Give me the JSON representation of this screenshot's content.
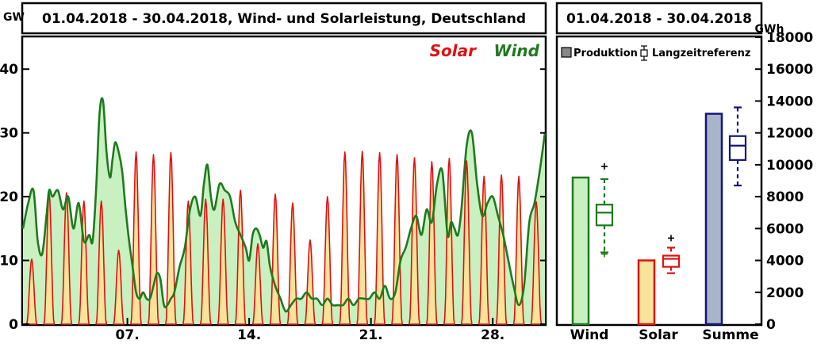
{
  "chart_data": [
    {
      "type": "area",
      "title": "01.04.2018 - 30.04.2018, Wind- und Solarleistung, Deutschland",
      "ylabel": "GW",
      "ylim": [
        0,
        45
      ],
      "yticks": [
        0,
        10,
        20,
        30,
        40
      ],
      "xlim": [
        1,
        31
      ],
      "xticks": [
        {
          "x": 7,
          "label": "07."
        },
        {
          "x": 14,
          "label": "14."
        },
        {
          "x": 21,
          "label": "21."
        },
        {
          "x": 28,
          "label": "28."
        }
      ],
      "series": [
        {
          "name": "Wind",
          "color": "#1e7a1e",
          "fill": "#c8f0c0",
          "x": [
            1.0,
            1.3,
            1.6,
            1.85,
            2.1,
            2.35,
            2.5,
            2.7,
            3.0,
            3.3,
            3.6,
            3.9,
            4.2,
            4.5,
            4.8,
            5.0,
            5.2,
            5.4,
            5.6,
            5.8,
            6.0,
            6.15,
            6.3,
            6.5,
            6.7,
            6.9,
            7.1,
            7.3,
            7.5,
            7.7,
            7.9,
            8.1,
            8.3,
            8.5,
            8.7,
            8.9,
            9.1,
            9.3,
            9.5,
            9.7,
            10.0,
            10.3,
            10.6,
            10.9,
            11.2,
            11.4,
            11.6,
            11.8,
            12.0,
            12.3,
            12.6,
            12.9,
            13.2,
            13.5,
            13.8,
            14.0,
            14.2,
            14.4,
            14.6,
            14.8,
            15.0,
            15.2,
            15.5,
            15.8,
            16.1,
            16.4,
            16.7,
            17.0,
            17.3,
            17.6,
            17.9,
            18.2,
            18.5,
            18.8,
            19.1,
            19.4,
            19.7,
            20.0,
            20.3,
            20.6,
            20.9,
            21.2,
            21.5,
            21.8,
            22.1,
            22.4,
            22.7,
            23.0,
            23.3,
            23.6,
            23.9,
            24.2,
            24.5,
            24.8,
            25.1,
            25.4,
            25.6,
            25.8,
            26.0,
            26.2,
            26.5,
            26.8,
            27.1,
            27.4,
            27.7,
            28.0,
            28.3,
            28.6,
            28.9,
            29.2,
            29.5,
            29.8,
            30.1,
            30.4,
            30.7,
            31.0
          ],
          "values": [
            15,
            19,
            21,
            13,
            11,
            17,
            21,
            20,
            21,
            18,
            20,
            15,
            19,
            13,
            14,
            13,
            21,
            33,
            35,
            27,
            23,
            26,
            28.5,
            27,
            24,
            18,
            13,
            9,
            5,
            4,
            5,
            4,
            4,
            6,
            8,
            7,
            3,
            3,
            4,
            5,
            9,
            12,
            18,
            20,
            17,
            22,
            25,
            20,
            18,
            22,
            21,
            20,
            16,
            14,
            12,
            10,
            14,
            15,
            14,
            12,
            13,
            9,
            6,
            4,
            2,
            3,
            4,
            4,
            5,
            4,
            4,
            3,
            4,
            3,
            3,
            3,
            4,
            3,
            4,
            4,
            4,
            5,
            4,
            6,
            4,
            5,
            10,
            12,
            15,
            17,
            14,
            18,
            16,
            22,
            24,
            14,
            16,
            15,
            14,
            18,
            28,
            30,
            22,
            17,
            19,
            20,
            17,
            14,
            10,
            6,
            3,
            6,
            16,
            19,
            24,
            30
          ],
          "smooth_factor": 1
        },
        {
          "name": "Solar",
          "color": "#e01010",
          "fill": "#f5e49a",
          "peaks": [
            10.2,
            20.6,
            20.6,
            19.3,
            19.3,
            11.6,
            27.0,
            26.6,
            26.9,
            19.3,
            19.6,
            19.6,
            21.0,
            12.6,
            20.4,
            19.0,
            13.2,
            20.0,
            27.0,
            27.1,
            26.9,
            26.6,
            26.1,
            25.5,
            26.0,
            25.6,
            23.2,
            23.4,
            23.2,
            19.2
          ]
        }
      ]
    },
    {
      "type": "bar",
      "title": "01.04.2018 - 30.04.2018",
      "ylabel": "GWh",
      "ylim": [
        0,
        18000
      ],
      "yticks": [
        0,
        2000,
        4000,
        6000,
        8000,
        10000,
        12000,
        14000,
        16000,
        18000
      ],
      "categories": [
        "Wind",
        "Solar",
        "Summe"
      ],
      "legend": {
        "produktion": "Produktion",
        "referenz": "Langzeitreferenz"
      },
      "produktion": [
        9200,
        4000,
        13200
      ],
      "referenz": [
        {
          "whisker_low": 4500,
          "q1": 6200,
          "median": 7000,
          "q3": 7500,
          "whisker_high": 9100,
          "outliers": [
            9900,
            4400
          ]
        },
        {
          "whisker_low": 3200,
          "q1": 3600,
          "median": 4100,
          "q3": 4300,
          "whisker_high": 4800,
          "outliers": [
            5400
          ]
        },
        {
          "whisker_low": 8700,
          "q1": 10300,
          "median": 11200,
          "q3": 11800,
          "whisker_high": 13600,
          "outliers": []
        }
      ],
      "colors": {
        "wind": {
          "stroke": "#1e7a1e",
          "fill": "#c8f0c0"
        },
        "solar": {
          "stroke": "#e01010",
          "fill": "#f5e49a"
        },
        "summe": {
          "stroke": "#14147a",
          "fill": "#a8b4c8"
        }
      }
    }
  ]
}
